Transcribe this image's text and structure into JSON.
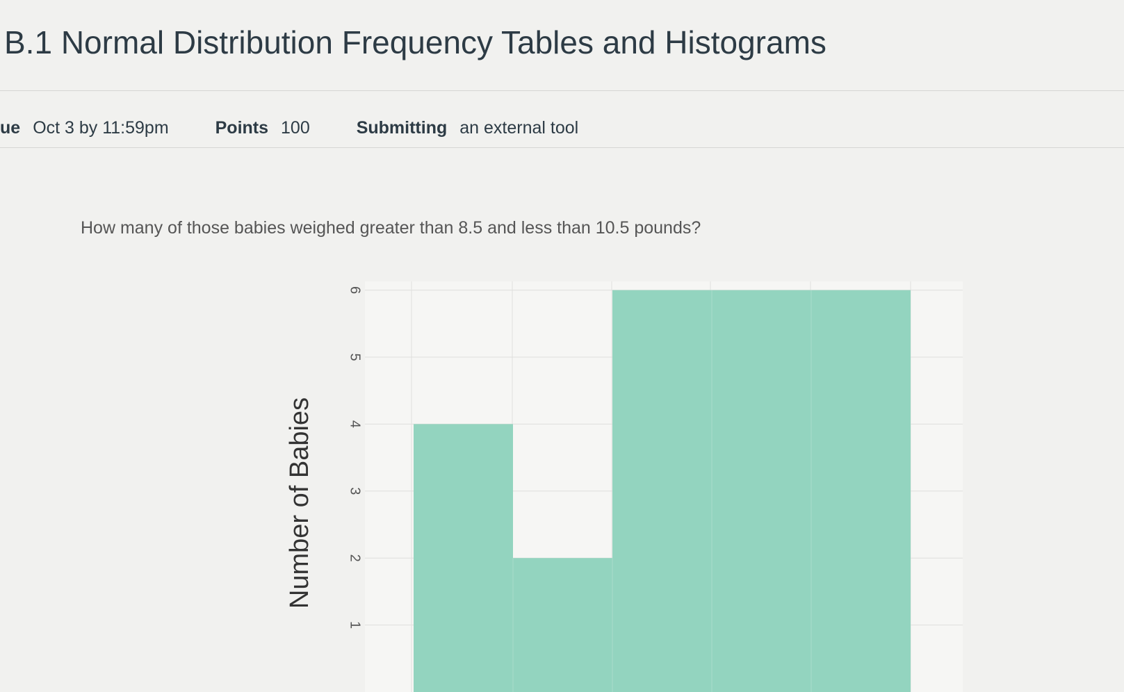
{
  "header": {
    "title": "B.1 Normal Distribution Frequency Tables and Histograms"
  },
  "meta": [
    {
      "label": "ue",
      "value": "Oct 3 by 11:59pm"
    },
    {
      "label": "Points",
      "value": 100
    },
    {
      "label": "Submitting",
      "value": "an external tool"
    }
  ],
  "question": "How many of those babies weighed greater than 8.5 and less than 10.5 pounds?",
  "chart_data": {
    "type": "bar",
    "categories": [
      null,
      null,
      null,
      null,
      null
    ],
    "values": [
      4,
      2,
      6,
      6,
      6
    ],
    "color": "#93d4bf",
    "ylabel": "Number of Babies",
    "ylim": [
      0,
      6
    ],
    "yticks": [
      1,
      2,
      3,
      4,
      5,
      6
    ],
    "grid": true
  }
}
